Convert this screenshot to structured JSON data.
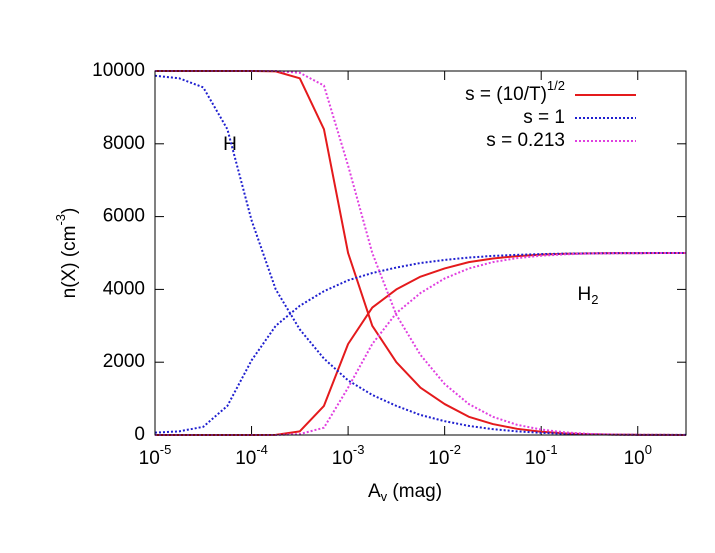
{
  "chart_data": {
    "type": "line",
    "x_label": {
      "text": "A",
      "sub": "v",
      "rest": " (mag)"
    },
    "y_label": {
      "text": "n(X) (cm",
      "sup": "-3",
      "rest": ")"
    },
    "log_x": true,
    "xlim": [
      1e-05,
      3.16
    ],
    "ylim": [
      0,
      10000
    ],
    "xticks": [
      {
        "value": 1e-05,
        "label": "10",
        "exponent": "-5"
      },
      {
        "value": 0.0001,
        "label": "10",
        "exponent": "-4"
      },
      {
        "value": 0.001,
        "label": "10",
        "exponent": "-3"
      },
      {
        "value": 0.01,
        "label": "10",
        "exponent": "-2"
      },
      {
        "value": 0.1,
        "label": "10",
        "exponent": "-1"
      },
      {
        "value": 1,
        "label": "10",
        "exponent": "0"
      }
    ],
    "yticks": [
      0,
      2000,
      4000,
      6000,
      8000,
      10000
    ],
    "legend": "top-right",
    "x": [
      1e-05,
      1.78e-05,
      3.16e-05,
      5.62e-05,
      0.0001,
      0.000178,
      0.000316,
      0.000562,
      0.001,
      0.00178,
      0.00316,
      0.00562,
      0.01,
      0.0178,
      0.0316,
      0.0562,
      0.1,
      0.178,
      0.316,
      0.562,
      1,
      1.78,
      3.16
    ],
    "series": [
      {
        "name": "s = (10/T)",
        "name_sup": "1/2",
        "color": "#e41a1c",
        "line_style": "solid",
        "values": [
          10000,
          10000,
          10000,
          10000,
          10000,
          9990,
          9800,
          8400,
          5000,
          3000,
          2000,
          1300,
          850,
          500,
          300,
          170,
          90,
          45,
          20,
          10,
          5,
          2,
          1
        ],
        "values_h2": [
          0,
          0,
          0,
          0,
          0,
          5,
          100,
          800,
          2500,
          3500,
          4000,
          4350,
          4575,
          4750,
          4850,
          4915,
          4955,
          4978,
          4990,
          4995,
          4998,
          4999,
          5000
        ]
      },
      {
        "name": "s = 1",
        "color": "#1f1fcf",
        "line_style": "dotted",
        "values": [
          9870,
          9800,
          9550,
          8400,
          5900,
          4000,
          2900,
          2100,
          1500,
          1100,
          800,
          550,
          380,
          250,
          160,
          100,
          60,
          35,
          20,
          10,
          5,
          3,
          2
        ],
        "values_h2": [
          65,
          100,
          225,
          800,
          2050,
          3000,
          3550,
          3950,
          4250,
          4450,
          4600,
          4725,
          4810,
          4875,
          4920,
          4950,
          4970,
          4983,
          4990,
          4995,
          4998,
          4999,
          4999
        ]
      },
      {
        "name": "s = 0.213",
        "color": "#e040e0",
        "line_style": "dotted",
        "values": [
          10000,
          10000,
          10000,
          10000,
          10000,
          10000,
          9950,
          9600,
          7400,
          5000,
          3300,
          2200,
          1400,
          850,
          500,
          280,
          150,
          70,
          30,
          12,
          5,
          2,
          1
        ],
        "values_h2": [
          0,
          0,
          0,
          0,
          0,
          0,
          25,
          200,
          1300,
          2500,
          3350,
          3900,
          4300,
          4575,
          4750,
          4860,
          4925,
          4965,
          4985,
          4994,
          4998,
          4999,
          5000
        ]
      }
    ],
    "annotations": [
      {
        "text": "H"
      },
      {
        "text": "H",
        "sub": "2"
      }
    ]
  }
}
